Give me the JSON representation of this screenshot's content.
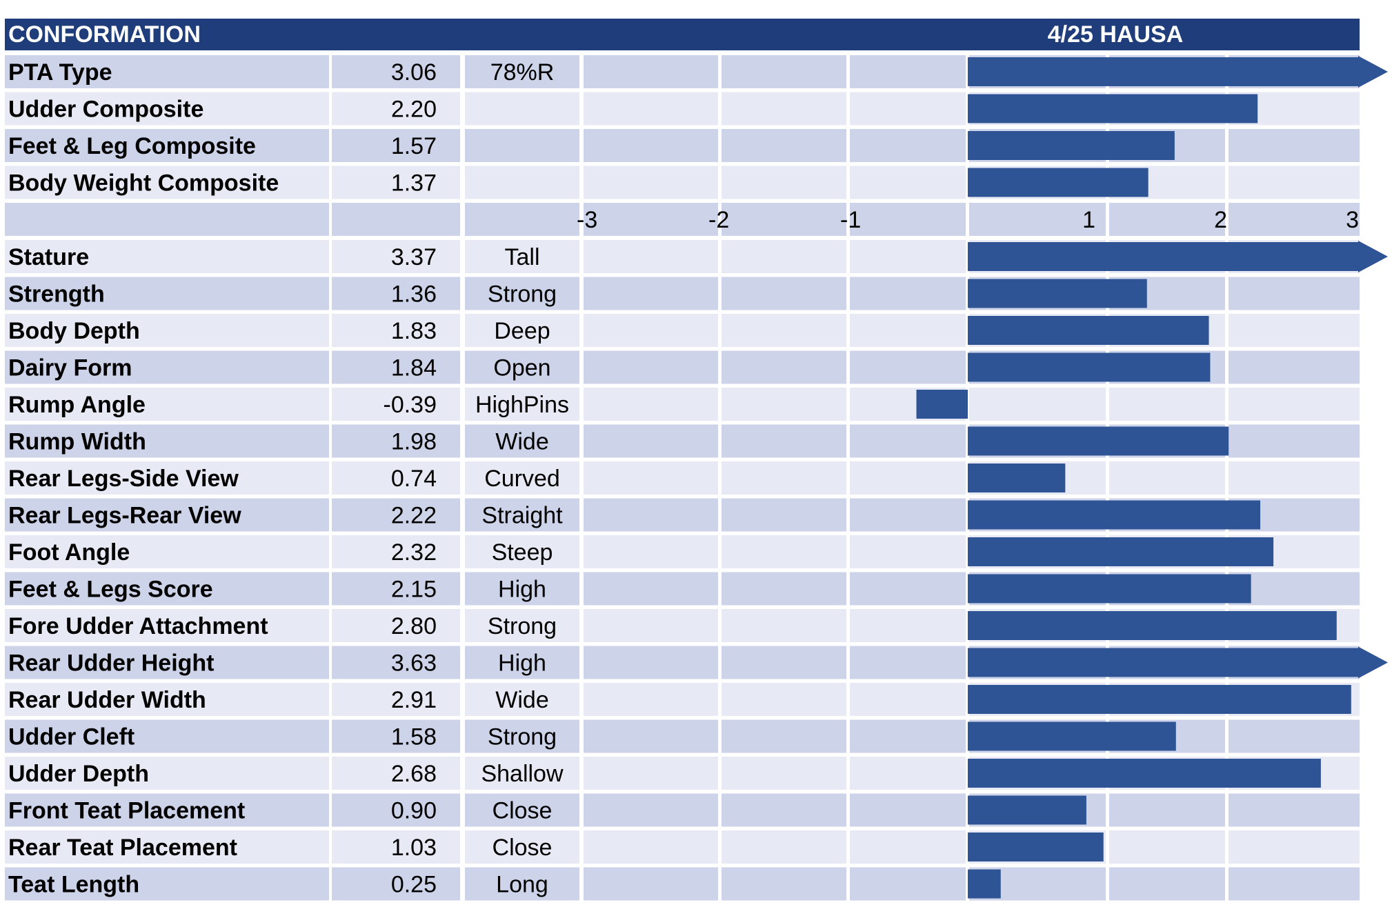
{
  "header": {
    "title": "CONFORMATION",
    "source": "4/25 HAUSA"
  },
  "colors": {
    "header_bg": "#1F3D7A",
    "header_text": "#FFFFFF",
    "bar": "#2E5496",
    "row_dark": "#CDD3E8",
    "row_light": "#E7EAF4",
    "text": "#000000"
  },
  "chart_data": [
    {
      "type": "bar",
      "orientation": "horizontal",
      "title": "CONFORMATION",
      "xlim": [
        -3,
        3
      ],
      "categories": [
        "PTA Type",
        "Udder Composite",
        "Feet & Leg Composite",
        "Body Weight Composite"
      ],
      "values": [
        3.06,
        2.2,
        1.57,
        1.37
      ],
      "value_labels": [
        "3.06",
        "2.20",
        "1.57",
        "1.37"
      ],
      "descriptors": [
        "78%R",
        "",
        "",
        ""
      ]
    },
    {
      "type": "bar",
      "orientation": "horizontal",
      "xlim": [
        -3,
        3
      ],
      "xticks": [
        "-3",
        "-2",
        "-1",
        "1",
        "2",
        "3"
      ],
      "categories": [
        "Stature",
        "Strength",
        "Body Depth",
        "Dairy Form",
        "Rump Angle",
        "Rump Width",
        "Rear Legs-Side View",
        "Rear Legs-Rear View",
        "Foot Angle",
        "Feet & Legs Score",
        "Fore Udder Attachment",
        "Rear Udder Height",
        "Rear Udder Width",
        "Udder Cleft",
        "Udder Depth",
        "Front Teat Placement",
        "Rear Teat Placement",
        "Teat Length"
      ],
      "values": [
        3.37,
        1.36,
        1.83,
        1.84,
        -0.39,
        1.98,
        0.74,
        2.22,
        2.32,
        2.15,
        2.8,
        3.63,
        2.91,
        1.58,
        2.68,
        0.9,
        1.03,
        0.25
      ],
      "value_labels": [
        "3.37",
        "1.36",
        "1.83",
        "1.84",
        "-0.39",
        "1.98",
        "0.74",
        "2.22",
        "2.32",
        "2.15",
        "2.80",
        "3.63",
        "2.91",
        "1.58",
        "2.68",
        "0.90",
        "1.03",
        "0.25"
      ],
      "descriptors": [
        "Tall",
        "Strong",
        "Deep",
        "Open",
        "HighPins",
        "Wide",
        "Curved",
        "Straight",
        "Steep",
        "High",
        "Strong",
        "High",
        "Wide",
        "Strong",
        "Shallow",
        "Close",
        "Close",
        "Long"
      ]
    }
  ]
}
